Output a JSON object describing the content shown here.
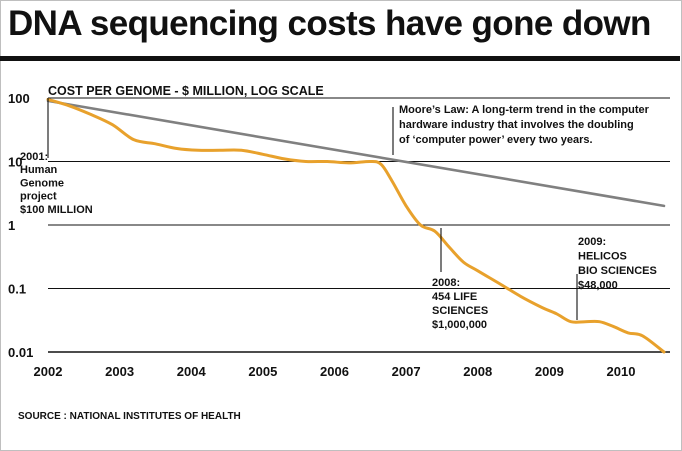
{
  "header": {
    "title": "DNA sequencing costs have gone down"
  },
  "footer": {
    "source": "SOURCE : NATIONAL INSTITUTES OF HEALTH"
  },
  "colors": {
    "cost_line": "#e8a12c",
    "moores_line": "#808080",
    "grid": "#111111"
  },
  "chart_data": {
    "type": "line",
    "ylabel": "COST PER GENOME - $ MILLION, LOG SCALE",
    "xlabel": "",
    "yscale": "log",
    "ylim": [
      0.01,
      100
    ],
    "xlim": [
      2002,
      2010.6
    ],
    "yticks": [
      {
        "value": 100,
        "label": "100"
      },
      {
        "value": 10,
        "label": "10"
      },
      {
        "value": 1,
        "label": "1"
      },
      {
        "value": 0.1,
        "label": "0.1"
      },
      {
        "value": 0.01,
        "label": "0.01"
      }
    ],
    "xticks": [
      2002,
      2003,
      2004,
      2005,
      2006,
      2007,
      2008,
      2009,
      2010
    ],
    "xtick_labels": [
      "2002",
      "2003",
      "2004",
      "2005",
      "2006",
      "2007",
      "2008",
      "2009",
      "2010"
    ],
    "grid": true,
    "series": [
      {
        "key": "cost",
        "x": [
          2002,
          2002.3,
          2002.6,
          2002.9,
          2003.2,
          2003.5,
          2003.8,
          2004.1,
          2004.4,
          2004.7,
          2005.0,
          2005.3,
          2005.6,
          2005.9,
          2006.2,
          2006.5,
          2006.65,
          2006.8,
          2007.0,
          2007.2,
          2007.4,
          2007.6,
          2007.8,
          2008.0,
          2008.3,
          2008.6,
          2008.9,
          2009.1,
          2009.3,
          2009.5,
          2009.7,
          2009.9,
          2010.1,
          2010.3,
          2010.6
        ],
        "y": [
          95,
          75,
          55,
          38,
          22,
          19,
          16,
          15,
          15,
          15,
          13,
          11,
          10,
          10,
          9.5,
          10,
          9,
          5,
          2,
          1.0,
          0.8,
          0.45,
          0.26,
          0.19,
          0.12,
          0.075,
          0.05,
          0.04,
          0.03,
          0.03,
          0.03,
          0.025,
          0.02,
          0.018,
          0.01
        ]
      },
      {
        "key": "moores_law",
        "x": [
          2002,
          2010.6
        ],
        "y": [
          90,
          2
        ]
      }
    ],
    "annotations": [
      {
        "key": "hgp",
        "lines": [
          "2001:",
          "Human",
          "Genome",
          "project",
          "$100 MILLION"
        ],
        "x": 2002,
        "y": 95
      },
      {
        "key": "moore",
        "lines": [
          "Moore’s Law: A long-term trend in the computer",
          "hardware industry that involves the doubling",
          "of ‘computer power’ every two years."
        ],
        "x": 2006.7,
        "y": 10
      },
      {
        "key": "life",
        "lines": [
          "2008:",
          "454 LIFE",
          "SCIENCES",
          "$1,000,000"
        ],
        "x": 2007.4,
        "y": 1
      },
      {
        "key": "helicos",
        "lines": [
          "2009:",
          "HELICOS",
          "BIO SCIENCES",
          "$48,000"
        ],
        "x": 2009.3,
        "y": 0.03
      }
    ]
  }
}
